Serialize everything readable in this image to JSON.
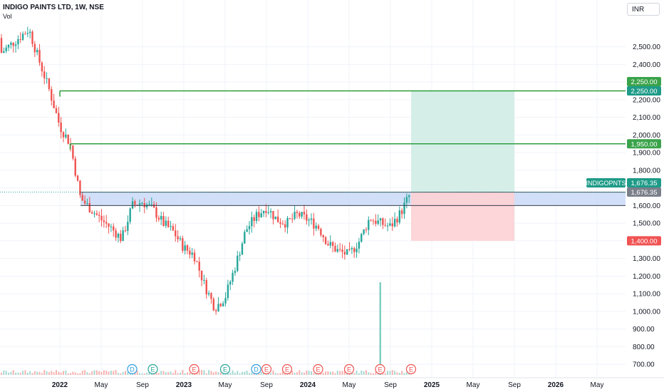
{
  "header": {
    "title": "INDIGO PAINTS LTD, 1W, NSE",
    "volume_label": "Vol",
    "currency": "INR"
  },
  "colors": {
    "up": "#26a69a",
    "down": "#ef5350",
    "target_line": "#2e9e3e",
    "zone_fill": "#c9d9f7",
    "profit_fill": "#d5efe8",
    "loss_fill": "#fcd2d4",
    "label_green": "#3aa34a",
    "label_teal": "#1e9b88",
    "label_red": "#f05353",
    "label_gray": "#7b7f8a"
  },
  "chart_data": {
    "type": "candlestick",
    "symbol": "INDIGOPNTS",
    "y_axis": {
      "range": [
        680,
        2620
      ],
      "ticks": [
        "700.00",
        "800.00",
        "900.00",
        "1,000.00",
        "1,100.00",
        "1,200.00",
        "1,300.00",
        "1,400.00",
        "1,500.00",
        "1,600.00",
        "1,700.00",
        "1,800.00",
        "1,900.00",
        "2,000.00",
        "2,100.00",
        "2,200.00",
        "2,300.00",
        "2,400.00",
        "2,500.00"
      ],
      "tick_values": [
        700,
        800,
        900,
        1000,
        1100,
        1200,
        1300,
        1400,
        1500,
        1600,
        1700,
        1800,
        1900,
        2000,
        2100,
        2200,
        2300,
        2400,
        2500
      ]
    },
    "x_axis": {
      "ticks": [
        "2022",
        "May",
        "Sep",
        "2023",
        "May",
        "Sep",
        "2024",
        "May",
        "Sep",
        "2025",
        "May",
        "Sep",
        "2026",
        "May"
      ],
      "tick_dates": [
        "2022-01",
        "2022-05",
        "2022-09",
        "2023-01",
        "2023-05",
        "2023-09",
        "2024-01",
        "2024-05",
        "2024-09",
        "2025-01",
        "2025-05",
        "2025-09",
        "2026-01",
        "2026-05"
      ],
      "bold": [
        "2022",
        "2023",
        "2024",
        "2025",
        "2026"
      ]
    },
    "price_path": [
      [
        "2021-09",
        2550
      ],
      [
        "2021-10",
        2600
      ],
      [
        "2021-11",
        2420
      ],
      [
        "2021-12",
        2250
      ],
      [
        "2022-01",
        2050
      ],
      [
        "2022-02",
        1950
      ],
      [
        "2022-03",
        1640
      ],
      [
        "2022-04",
        1580
      ],
      [
        "2022-05",
        1520
      ],
      [
        "2022-06",
        1470
      ],
      [
        "2022-07",
        1410
      ],
      [
        "2022-08",
        1600
      ],
      [
        "2022-09",
        1620
      ],
      [
        "2022-10",
        1580
      ],
      [
        "2022-11",
        1500
      ],
      [
        "2022-12",
        1450
      ],
      [
        "2023-01",
        1360
      ],
      [
        "2023-02",
        1320
      ],
      [
        "2023-03",
        1150
      ],
      [
        "2023-04",
        1020
      ],
      [
        "2023-05",
        1080
      ],
      [
        "2023-06",
        1260
      ],
      [
        "2023-07",
        1460
      ],
      [
        "2023-08",
        1540
      ],
      [
        "2023-09",
        1590
      ],
      [
        "2023-10",
        1520
      ],
      [
        "2023-11",
        1500
      ],
      [
        "2023-12",
        1550
      ],
      [
        "2024-01",
        1520
      ],
      [
        "2024-02",
        1480
      ],
      [
        "2024-03",
        1380
      ],
      [
        "2024-04",
        1340
      ],
      [
        "2024-05",
        1320
      ],
      [
        "2024-06",
        1400
      ],
      [
        "2024-07",
        1530
      ],
      [
        "2024-08",
        1500
      ],
      [
        "2024-09",
        1480
      ],
      [
        "2024-10",
        1560
      ],
      [
        "2024-11",
        1676
      ]
    ],
    "levels": [
      {
        "name": "target-2",
        "value": 2250,
        "label": "2,250.00",
        "from": "2022-01"
      },
      {
        "name": "target-1",
        "value": 1950,
        "label": "1,950.00",
        "from": "2022-02"
      },
      {
        "name": "zone-top",
        "value": 1676,
        "from": "2022-03"
      },
      {
        "name": "zone-bottom",
        "value": 1600,
        "from": "2022-03"
      }
    ],
    "position": {
      "entry": 1676.35,
      "target": 2250,
      "stop": 1400,
      "from": "2024-11",
      "to": "2025-09"
    },
    "price_labels": [
      {
        "text": "2,250.00",
        "value": 2250,
        "color": "label_green",
        "offset": -1
      },
      {
        "text": "2,250.00",
        "value": 2250,
        "color": "label_teal",
        "offset": 0
      },
      {
        "text": "1,950.00",
        "value": 1950,
        "color": "label_green",
        "offset": 0
      },
      {
        "text": "1,676.35",
        "value": 1676.35,
        "color": "label_teal",
        "offset": -1
      },
      {
        "text": "1,676.35",
        "value": 1676.35,
        "color": "label_gray",
        "offset": 0
      },
      {
        "text": "1,400.00",
        "value": 1400,
        "color": "label_red",
        "offset": 0
      }
    ],
    "symbol_tag": {
      "text": "INDIGOPNTS",
      "value": 1676.35
    },
    "events": [
      {
        "kind": "D",
        "date": "2022-08"
      },
      {
        "kind": "E",
        "date": "2022-10"
      },
      {
        "kind": "E",
        "date": "2023-02"
      },
      {
        "kind": "E",
        "date": "2023-05"
      },
      {
        "kind": "D",
        "date": "2023-08"
      },
      {
        "kind": "E",
        "date": "2023-09"
      },
      {
        "kind": "E",
        "date": "2023-11"
      },
      {
        "kind": "E",
        "date": "2024-02"
      },
      {
        "kind": "E",
        "date": "2024-05"
      },
      {
        "kind": "E",
        "date": "2024-08"
      },
      {
        "kind": "E",
        "date": "2024-11"
      }
    ],
    "volume_spike": {
      "date": "2024-08",
      "relative": 1.0
    }
  }
}
